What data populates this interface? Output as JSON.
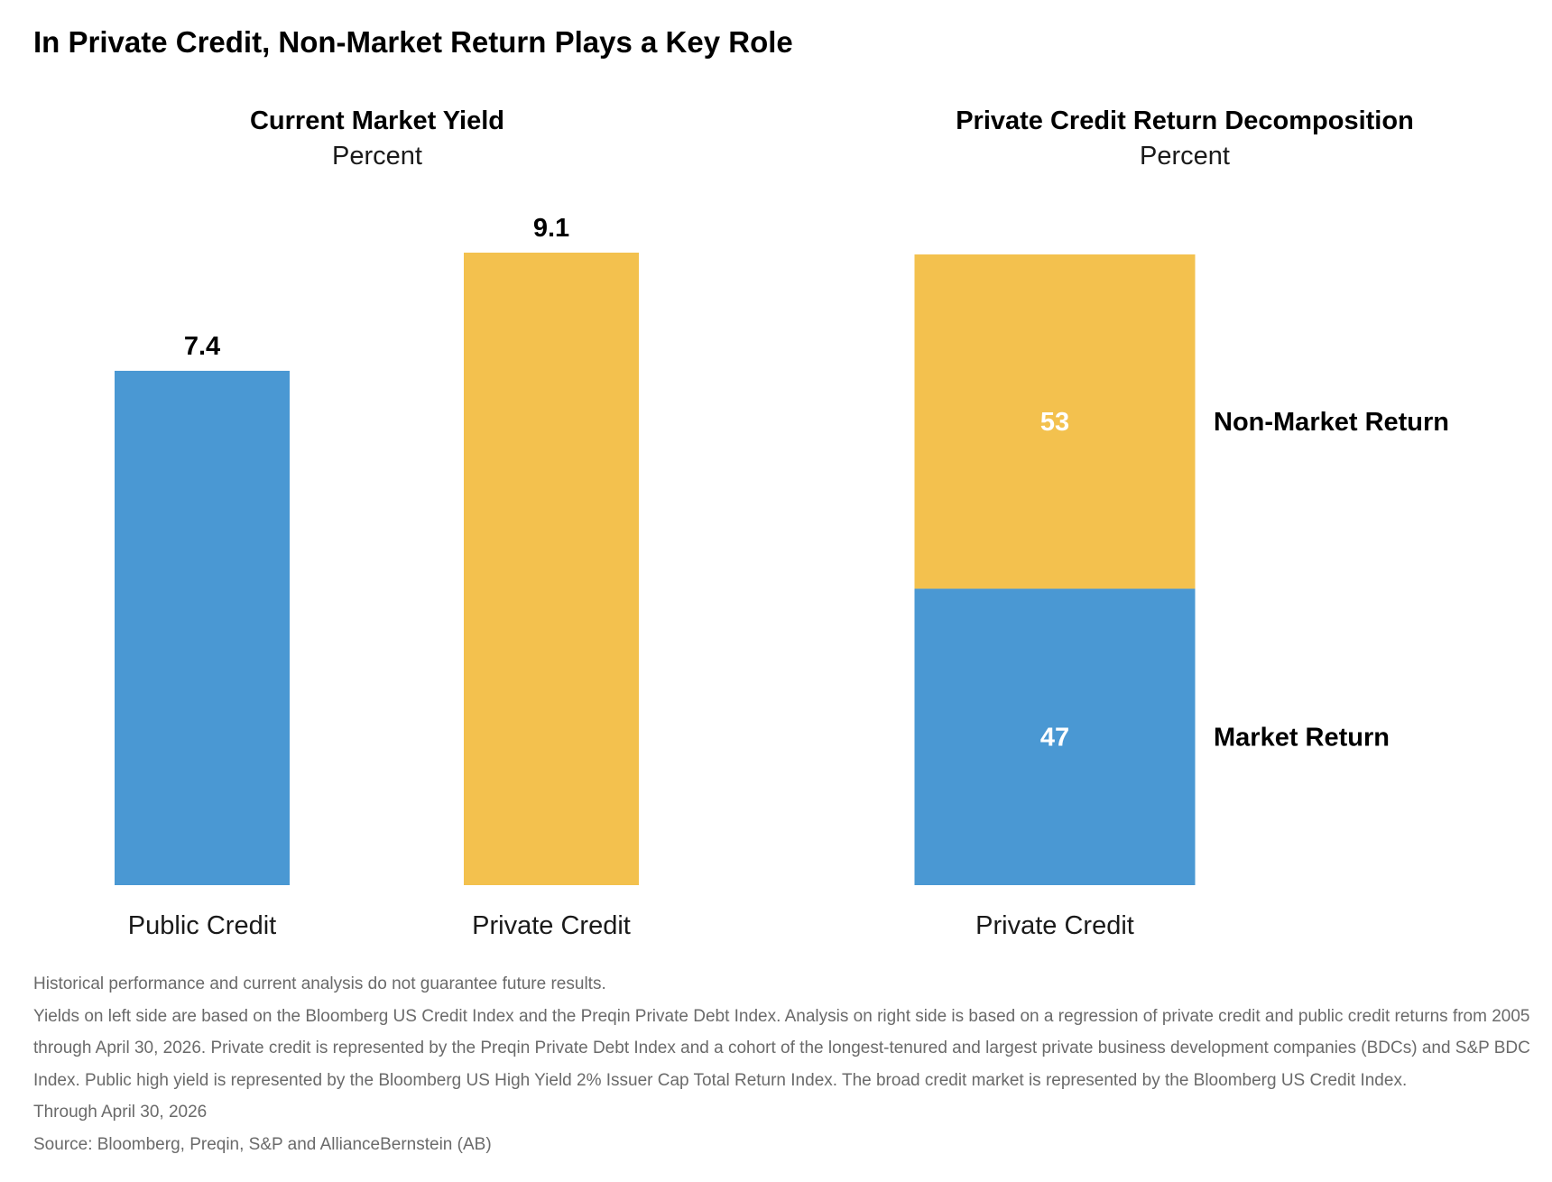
{
  "title": "In Private Credit, Non-Market Return Plays a Key Role",
  "colors": {
    "blue": "#4a98d3",
    "gold": "#f3c14e",
    "text": "#000000",
    "inner_label": "#ffffff",
    "footnote": "#6a6a6a"
  },
  "chart_data": [
    {
      "type": "bar",
      "title": "Current Market Yield",
      "subtitle": "Percent",
      "categories": [
        "Public Credit",
        "Private Credit"
      ],
      "values": [
        7.4,
        9.1
      ],
      "data_labels": [
        "7.4",
        "9.1"
      ],
      "bar_colors": [
        "#4a98d3",
        "#f3c14e"
      ],
      "ylim": [
        0,
        9.1
      ],
      "grid": false,
      "legend": "none"
    },
    {
      "type": "bar",
      "stacked": true,
      "title": "Private Credit Return Decomposition",
      "subtitle": "Percent",
      "categories": [
        "Private Credit"
      ],
      "series": [
        {
          "name": "Market Return",
          "values": [
            47
          ],
          "data_label": "47",
          "color": "#4a98d3"
        },
        {
          "name": "Non-Market Return",
          "values": [
            53
          ],
          "data_label": "53",
          "color": "#f3c14e"
        }
      ],
      "ylim": [
        0,
        100
      ],
      "grid": false,
      "legend": "right"
    }
  ],
  "footnotes": [
    "Historical performance and current analysis do not guarantee future results.",
    "Yields on left side are based on the Bloomberg US Credit Index and the Preqin Private Debt Index. Analysis on right side is based on a regression of private credit and public credit returns from 2005 through April 30, 2026. Private credit is represented by the Preqin Private Debt Index and a cohort of the longest-tenured and largest private business development companies (BDCs) and S&P BDC Index. Public high yield is represented by the Bloomberg US High Yield 2% Issuer Cap Total Return Index. The broad credit market is represented by the Bloomberg US Credit Index.",
    "Through April 30, 2026",
    "Source: Bloomberg, Preqin, S&P and AllianceBernstein (AB)"
  ]
}
